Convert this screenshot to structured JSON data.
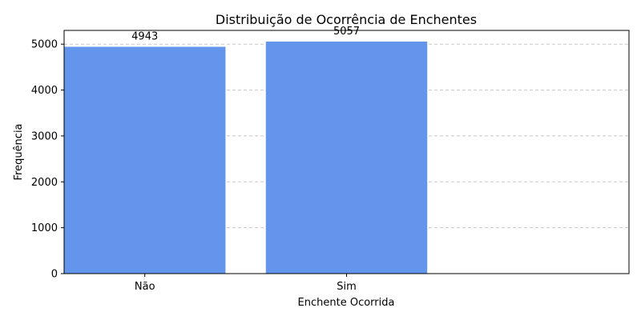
{
  "chart_data": {
    "type": "bar",
    "title": "Distribuição de Ocorrência de Enchentes",
    "xlabel": "Enchente Ocorrida",
    "ylabel": "Frequência",
    "categories": [
      "Não",
      "Sim"
    ],
    "values": [
      4943,
      5057
    ],
    "ylim": [
      0,
      5300
    ],
    "yticks": [
      0,
      1000,
      2000,
      3000,
      4000,
      5000
    ],
    "grid": "y-dashed",
    "bar_color": "#6495ED",
    "grid_color": "#c8c8c8",
    "axis_color": "#000000"
  }
}
